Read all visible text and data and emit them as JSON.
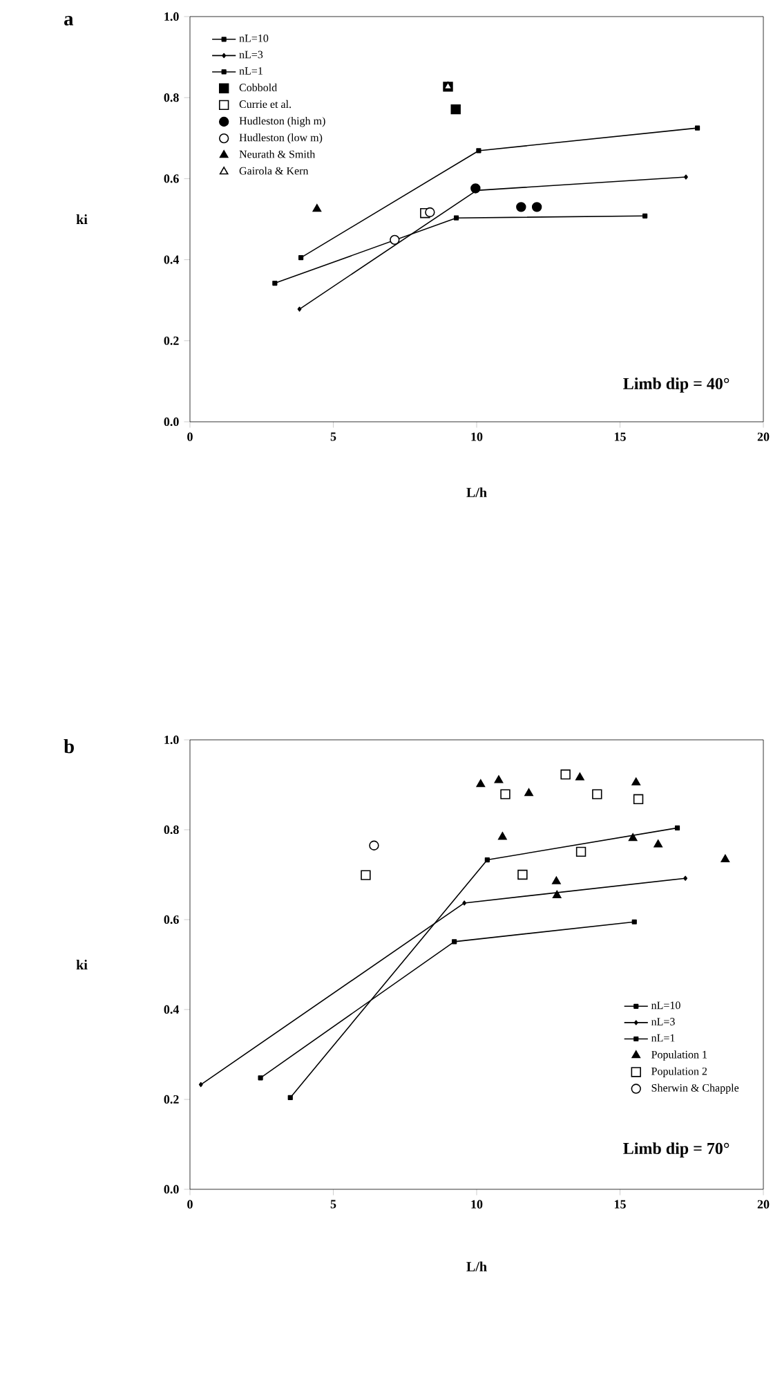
{
  "chart_data": [
    {
      "type": "scatter",
      "title": "a",
      "xlabel": "L/h",
      "ylabel": "ki",
      "xlim": [
        0,
        20
      ],
      "ylim": [
        0,
        1
      ],
      "xticks": [
        0,
        5,
        10,
        15,
        20
      ],
      "yticks": [
        {
          "value": 0,
          "label": "0.0"
        },
        {
          "value": 0.2,
          "label": "0.2"
        },
        {
          "value": 0.4,
          "label": "0.4"
        },
        {
          "value": 0.6,
          "label": "0.6"
        },
        {
          "value": 0.8,
          "label": "0.8"
        },
        {
          "value": 1,
          "label": "1.0"
        }
      ],
      "legend": "top left",
      "annotations": [
        "Limb dip = 40°"
      ],
      "series": [
        {
          "name": "nL=10",
          "type": "line",
          "marker": "square",
          "color": "#000000",
          "x": [
            3.87,
            10.07,
            17.7
          ],
          "values": [
            0.405,
            0.669,
            0.725
          ]
        },
        {
          "name": "nL=3",
          "type": "line",
          "marker": "diamond",
          "color": "#000000",
          "x": [
            3.82,
            10.0,
            17.3
          ],
          "values": [
            0.278,
            0.571,
            0.604
          ]
        },
        {
          "name": "nL=1",
          "type": "line",
          "marker": "square",
          "color": "#000000",
          "x": [
            2.96,
            9.29,
            15.87
          ],
          "values": [
            0.342,
            0.503,
            0.508
          ]
        },
        {
          "name": "Cobbold",
          "marker": "square",
          "color": "#000000",
          "x": [
            9.0,
            9.27
          ],
          "values": [
            0.827,
            0.771
          ]
        },
        {
          "name": "Currie et al.",
          "marker": "square",
          "color": "#ffffff",
          "x": [
            8.2
          ],
          "values": [
            0.515
          ]
        },
        {
          "name": "Hudleston (high m)",
          "marker": "circle",
          "color": "#000000",
          "x": [
            9.96,
            11.55,
            12.1
          ],
          "values": [
            0.576,
            0.53,
            0.53
          ]
        },
        {
          "name": "Hudleston (low m)",
          "marker": "circle",
          "color": "#ffffff",
          "x": [
            8.37,
            7.14
          ],
          "values": [
            0.517,
            0.449
          ]
        },
        {
          "name": "Neurath & Smith",
          "marker": "triangle",
          "color": "#000000",
          "x": [
            4.43
          ],
          "values": [
            0.525
          ]
        },
        {
          "name": "Gairola & Kern",
          "marker": "triangle",
          "color": "#ffffff",
          "x": [
            9.0
          ],
          "values": [
            0.827
          ]
        }
      ]
    },
    {
      "type": "scatter",
      "title": "b",
      "xlabel": "L/h",
      "ylabel": "ki",
      "xlim": [
        0,
        20
      ],
      "ylim": [
        0,
        1
      ],
      "xticks": [
        0,
        5,
        10,
        15,
        20
      ],
      "yticks": [
        {
          "value": 0,
          "label": "0.0"
        },
        {
          "value": 0.2,
          "label": "0.2"
        },
        {
          "value": 0.4,
          "label": "0.4"
        },
        {
          "value": 0.6,
          "label": "0.6"
        },
        {
          "value": 0.8,
          "label": "0.8"
        },
        {
          "value": 1,
          "label": "1.0"
        }
      ],
      "legend": "bottom right",
      "annotations": [
        "Limb dip = 70°"
      ],
      "series": [
        {
          "name": "nL=10",
          "type": "line",
          "marker": "square",
          "color": "#000000",
          "x": [
            3.5,
            10.37,
            17.0
          ],
          "values": [
            0.204,
            0.733,
            0.804
          ]
        },
        {
          "name": "nL=3",
          "type": "line",
          "marker": "diamond",
          "color": "#000000",
          "x": [
            0.38,
            9.57,
            17.28
          ],
          "values": [
            0.233,
            0.637,
            0.692
          ]
        },
        {
          "name": "nL=1",
          "type": "line",
          "marker": "square",
          "color": "#000000",
          "x": [
            2.46,
            9.22,
            15.5
          ],
          "values": [
            0.248,
            0.551,
            0.595
          ]
        },
        {
          "name": "Population 1",
          "marker": "triangle",
          "color": "#000000",
          "x": [
            10.14,
            10.77,
            11.82,
            10.9,
            13.6,
            15.56,
            15.45,
            16.33,
            18.67,
            12.78,
            12.8
          ],
          "values": [
            0.901,
            0.91,
            0.881,
            0.784,
            0.916,
            0.905,
            0.781,
            0.767,
            0.734,
            0.685,
            0.654
          ]
        },
        {
          "name": "Population 2",
          "marker": "square",
          "color": "#ffffff",
          "x": [
            6.13,
            11.0,
            13.1,
            14.2,
            15.64,
            13.64,
            11.6
          ],
          "values": [
            0.699,
            0.879,
            0.923,
            0.879,
            0.868,
            0.751,
            0.7
          ]
        },
        {
          "name": "Sherwin & Chapple",
          "marker": "circle",
          "color": "#ffffff",
          "x": [
            6.42
          ],
          "values": [
            0.765
          ]
        }
      ]
    }
  ]
}
